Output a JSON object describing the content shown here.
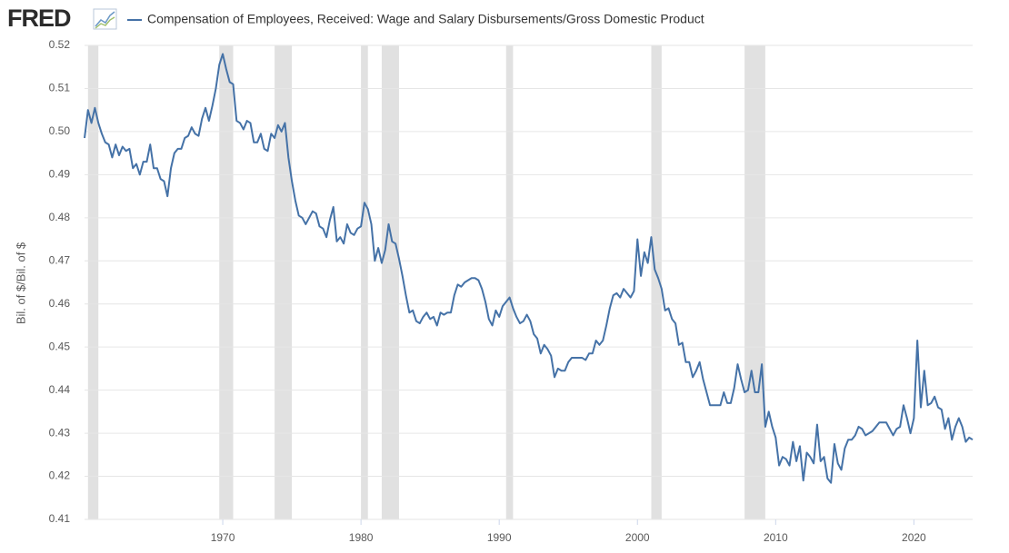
{
  "chart_data": {
    "type": "line",
    "logo": "FRED",
    "ylabel": "Bil. of $/Bil. of $",
    "xlim": [
      1960,
      2024.25
    ],
    "xticks": [
      1970,
      1980,
      1990,
      2000,
      2010,
      2020
    ],
    "ylim": [
      0.41,
      0.52
    ],
    "yticks": [
      0.41,
      0.42,
      0.43,
      0.44,
      0.45,
      0.46,
      0.47,
      0.48,
      0.49,
      {
        "value": 0.5,
        "label": "0.50"
      },
      0.51,
      0.52
    ],
    "grid": true,
    "recession_color": "#e1e1e1",
    "recessions": [
      [
        1960.25,
        1961.0
      ],
      [
        1969.75,
        1970.75
      ],
      [
        1973.75,
        1975.0
      ],
      [
        1980.0,
        1980.5
      ],
      [
        1981.5,
        1982.75
      ],
      [
        1990.5,
        1991.0
      ],
      [
        2001.0,
        2001.75
      ],
      [
        2007.75,
        2009.25
      ]
    ],
    "x": [
      1960,
      1960.25,
      1960.5,
      1960.75,
      1961,
      1961.25,
      1961.5,
      1961.75,
      1962,
      1962.25,
      1962.5,
      1962.75,
      1963,
      1963.25,
      1963.5,
      1963.75,
      1964,
      1964.25,
      1964.5,
      1964.75,
      1965,
      1965.25,
      1965.5,
      1965.75,
      1966,
      1966.25,
      1966.5,
      1966.75,
      1967,
      1967.25,
      1967.5,
      1967.75,
      1968,
      1968.25,
      1968.5,
      1968.75,
      1969,
      1969.25,
      1969.5,
      1969.75,
      1970,
      1970.25,
      1970.5,
      1970.75,
      1971,
      1971.25,
      1971.5,
      1971.75,
      1972,
      1972.25,
      1972.5,
      1972.75,
      1973,
      1973.25,
      1973.5,
      1973.75,
      1974,
      1974.25,
      1974.5,
      1974.75,
      1975,
      1975.25,
      1975.5,
      1975.75,
      1976,
      1976.25,
      1976.5,
      1976.75,
      1977,
      1977.25,
      1977.5,
      1977.75,
      1978,
      1978.25,
      1978.5,
      1978.75,
      1979,
      1979.25,
      1979.5,
      1979.75,
      1980,
      1980.25,
      1980.5,
      1980.75,
      1981,
      1981.25,
      1981.5,
      1981.75,
      1982,
      1982.25,
      1982.5,
      1982.75,
      1983,
      1983.25,
      1983.5,
      1983.75,
      1984,
      1984.25,
      1984.5,
      1984.75,
      1985,
      1985.25,
      1985.5,
      1985.75,
      1986,
      1986.25,
      1986.5,
      1986.75,
      1987,
      1987.25,
      1987.5,
      1987.75,
      1988,
      1988.25,
      1988.5,
      1988.75,
      1989,
      1989.25,
      1989.5,
      1989.75,
      1990,
      1990.25,
      1990.5,
      1990.75,
      1991,
      1991.25,
      1991.5,
      1991.75,
      1992,
      1992.25,
      1992.5,
      1992.75,
      1993,
      1993.25,
      1993.5,
      1993.75,
      1994,
      1994.25,
      1994.5,
      1994.75,
      1995,
      1995.25,
      1995.5,
      1995.75,
      1996,
      1996.25,
      1996.5,
      1996.75,
      1997,
      1997.25,
      1997.5,
      1997.75,
      1998,
      1998.25,
      1998.5,
      1998.75,
      1999,
      1999.25,
      1999.5,
      1999.75,
      2000,
      2000.25,
      2000.5,
      2000.75,
      2001,
      2001.25,
      2001.5,
      2001.75,
      2002,
      2002.25,
      2002.5,
      2002.75,
      2003,
      2003.25,
      2003.5,
      2003.75,
      2004,
      2004.25,
      2004.5,
      2004.75,
      2005,
      2005.25,
      2005.5,
      2005.75,
      2006,
      2006.25,
      2006.5,
      2006.75,
      2007,
      2007.25,
      2007.5,
      2007.75,
      2008,
      2008.25,
      2008.5,
      2008.75,
      2009,
      2009.25,
      2009.5,
      2009.75,
      2010,
      2010.25,
      2010.5,
      2010.75,
      2011,
      2011.25,
      2011.5,
      2011.75,
      2012,
      2012.25,
      2012.5,
      2012.75,
      2013,
      2013.25,
      2013.5,
      2013.75,
      2014,
      2014.25,
      2014.5,
      2014.75,
      2015,
      2015.25,
      2015.5,
      2015.75,
      2016,
      2016.25,
      2016.5,
      2016.75,
      2017,
      2017.25,
      2017.5,
      2017.75,
      2018,
      2018.25,
      2018.5,
      2018.75,
      2019,
      2019.25,
      2019.5,
      2019.75,
      2020,
      2020.25,
      2020.5,
      2020.75,
      2021,
      2021.25,
      2021.5,
      2021.75,
      2022,
      2022.25,
      2022.5,
      2022.75,
      2023,
      2023.25,
      2023.5,
      2023.75,
      2024,
      2024.25
    ],
    "series": [
      {
        "name": "Compensation of Employees, Received: Wage and Salary Disbursements/Gross Domestic Product",
        "color": "#4572a7",
        "values": [
          0.4985,
          0.505,
          0.502,
          0.5055,
          0.502,
          0.4995,
          0.4975,
          0.497,
          0.494,
          0.497,
          0.4945,
          0.4965,
          0.4955,
          0.496,
          0.4915,
          0.4925,
          0.49,
          0.493,
          0.493,
          0.497,
          0.4915,
          0.4915,
          0.489,
          0.4885,
          0.485,
          0.4915,
          0.495,
          0.496,
          0.496,
          0.4985,
          0.499,
          0.501,
          0.4995,
          0.499,
          0.503,
          0.5055,
          0.5025,
          0.506,
          0.51,
          0.5155,
          0.518,
          0.5145,
          0.5115,
          0.511,
          0.5025,
          0.502,
          0.5005,
          0.5025,
          0.502,
          0.4975,
          0.4975,
          0.4995,
          0.496,
          0.4955,
          0.4995,
          0.4985,
          0.5015,
          0.5,
          0.502,
          0.494,
          0.4885,
          0.484,
          0.4805,
          0.48,
          0.4785,
          0.48,
          0.4815,
          0.481,
          0.478,
          0.4775,
          0.4755,
          0.4795,
          0.4825,
          0.4745,
          0.4755,
          0.474,
          0.4785,
          0.4765,
          0.476,
          0.4775,
          0.478,
          0.4835,
          0.482,
          0.4785,
          0.47,
          0.473,
          0.4695,
          0.4725,
          0.4785,
          0.4745,
          0.474,
          0.4705,
          0.4665,
          0.462,
          0.458,
          0.4585,
          0.456,
          0.4555,
          0.457,
          0.458,
          0.4565,
          0.457,
          0.455,
          0.458,
          0.4575,
          0.458,
          0.458,
          0.462,
          0.4645,
          0.464,
          0.465,
          0.4655,
          0.466,
          0.466,
          0.4655,
          0.4635,
          0.4605,
          0.4565,
          0.455,
          0.4585,
          0.457,
          0.4595,
          0.4605,
          0.4615,
          0.459,
          0.457,
          0.4555,
          0.456,
          0.4575,
          0.456,
          0.453,
          0.452,
          0.4485,
          0.4505,
          0.4495,
          0.448,
          0.443,
          0.445,
          0.4445,
          0.4445,
          0.4465,
          0.4475,
          0.4475,
          0.4475,
          0.4475,
          0.447,
          0.4485,
          0.4485,
          0.4515,
          0.4505,
          0.4515,
          0.455,
          0.459,
          0.462,
          0.4625,
          0.4615,
          0.4635,
          0.4625,
          0.4615,
          0.463,
          0.475,
          0.4665,
          0.472,
          0.4695,
          0.4755,
          0.468,
          0.466,
          0.4635,
          0.4585,
          0.459,
          0.4565,
          0.4555,
          0.4505,
          0.451,
          0.4465,
          0.4465,
          0.443,
          0.4445,
          0.4465,
          0.4425,
          0.4395,
          0.4365,
          0.4365,
          0.4365,
          0.4365,
          0.4395,
          0.437,
          0.437,
          0.4405,
          0.446,
          0.4425,
          0.4395,
          0.44,
          0.4445,
          0.4395,
          0.4395,
          0.446,
          0.4315,
          0.435,
          0.4315,
          0.429,
          0.4225,
          0.4245,
          0.424,
          0.4225,
          0.428,
          0.4235,
          0.427,
          0.419,
          0.4255,
          0.4245,
          0.423,
          0.432,
          0.4235,
          0.4245,
          0.4195,
          0.4185,
          0.4275,
          0.423,
          0.4215,
          0.4265,
          0.4285,
          0.4285,
          0.4295,
          0.4315,
          0.431,
          0.4295,
          0.43,
          0.4305,
          0.4315,
          0.4325,
          0.4325,
          0.4325,
          0.431,
          0.4295,
          0.431,
          0.4315,
          0.4365,
          0.4335,
          0.43,
          0.4335,
          0.4515,
          0.436,
          0.4445,
          0.4365,
          0.437,
          0.4385,
          0.436,
          0.4355,
          0.431,
          0.4335,
          0.4285,
          0.4315,
          0.4335,
          0.4315,
          0.428,
          0.429,
          0.4285
        ]
      }
    ]
  }
}
